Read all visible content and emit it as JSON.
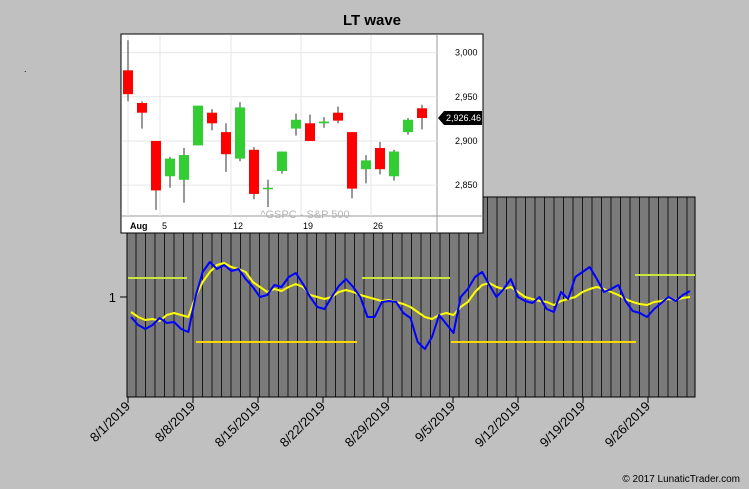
{
  "chart_data": [
    {
      "type": "line",
      "title": "LT wave",
      "y_tick_label": "1",
      "x_tick_labels": [
        "8/1/2019",
        "8/8/2019",
        "8/15/2019",
        "8/22/2019",
        "8/29/2019",
        "9/5/2019",
        "9/12/2019",
        "9/19/2019",
        "9/26/2019"
      ],
      "series": [
        {
          "color": "#0000ff",
          "values": [
            0.8,
            0.72,
            0.68,
            0.72,
            0.79,
            0.74,
            0.75,
            0.68,
            0.65,
            1.0,
            1.25,
            1.35,
            1.28,
            1.32,
            1.26,
            1.28,
            1.18,
            1.1,
            1.0,
            1.02,
            1.12,
            1.1,
            1.2,
            1.24,
            1.13,
            1.0,
            0.9,
            0.88,
            1.0,
            1.11,
            1.18,
            1.1,
            1.0,
            0.8,
            0.8,
            0.95,
            0.96,
            0.95,
            0.84,
            0.79,
            0.55,
            0.48,
            0.6,
            0.82,
            0.73,
            0.64,
            1.0,
            1.08,
            1.2,
            1.25,
            1.12,
            1.0,
            1.08,
            1.18,
            1.0,
            0.96,
            0.94,
            1.0,
            0.88,
            0.85,
            1.05,
            0.98,
            1.2,
            1.25,
            1.3,
            1.18,
            1.05,
            1.08,
            1.12,
            0.96,
            0.86,
            0.84,
            0.8,
            0.88,
            0.94,
            1.0,
            0.96,
            1.02,
            1.06
          ]
        },
        {
          "color": "#ffff00",
          "values": [
            0.85,
            0.8,
            0.77,
            0.78,
            0.76,
            0.82,
            0.84,
            0.82,
            0.8,
            1.0,
            1.15,
            1.25,
            1.32,
            1.34,
            1.3,
            1.28,
            1.25,
            1.15,
            1.1,
            1.05,
            1.08,
            1.06,
            1.1,
            1.13,
            1.1,
            1.02,
            1.0,
            0.98,
            1.0,
            1.05,
            1.07,
            1.05,
            1.02,
            1.0,
            0.98,
            0.96,
            0.97,
            0.95,
            0.93,
            0.9,
            0.85,
            0.8,
            0.78,
            0.82,
            0.84,
            0.82,
            0.9,
            0.95,
            1.05,
            1.12,
            1.14,
            1.1,
            1.08,
            1.1,
            1.05,
            1.0,
            0.98,
            0.96,
            0.95,
            0.92,
            0.96,
            0.98,
            1.0,
            1.05,
            1.08,
            1.1,
            1.08,
            1.05,
            1.02,
            0.98,
            0.95,
            0.93,
            0.92,
            0.95,
            0.96,
            0.98,
            0.97,
            0.99,
            1.0
          ]
        }
      ],
      "level_lines": [
        {
          "color": "#c8e63c",
          "value": 1.19
        },
        {
          "color": "#c8e63c",
          "value": 1.19
        },
        {
          "color": "#c8e63c",
          "value": 1.22
        },
        {
          "color": "#ffd700",
          "value": 0.55
        },
        {
          "color": "#ffd700",
          "value": 0.55
        }
      ]
    },
    {
      "type": "candlestick",
      "title": "^GSPC - S&P 500",
      "x_tick_labels": [
        "Aug",
        "5",
        "12",
        "19",
        "26"
      ],
      "y_tick_labels": [
        "3,000",
        "2,950",
        "2,900",
        "2,850"
      ],
      "last_price_label": "2,926.46",
      "up_color": "#32cd32",
      "down_color": "#ff0000",
      "candles": [
        {
          "o": 2980,
          "h": 3014,
          "l": 2945,
          "c": 2953
        },
        {
          "o": 2943,
          "h": 2945,
          "l": 2914,
          "c": 2932
        },
        {
          "o": 2900,
          "h": 2900,
          "l": 2822,
          "c": 2844
        },
        {
          "o": 2860,
          "h": 2882,
          "l": 2847,
          "c": 2880
        },
        {
          "o": 2856,
          "h": 2892,
          "l": 2830,
          "c": 2884
        },
        {
          "o": 2895,
          "h": 2940,
          "l": 2895,
          "c": 2940
        },
        {
          "o": 2932,
          "h": 2936,
          "l": 2912,
          "c": 2920
        },
        {
          "o": 2910,
          "h": 2920,
          "l": 2865,
          "c": 2885
        },
        {
          "o": 2880,
          "h": 2944,
          "l": 2877,
          "c": 2938
        },
        {
          "o": 2890,
          "h": 2893,
          "l": 2834,
          "c": 2840
        },
        {
          "o": 2847,
          "h": 2856,
          "l": 2825,
          "c": 2847
        },
        {
          "o": 2866,
          "h": 2888,
          "l": 2863,
          "c": 2888
        },
        {
          "o": 2914,
          "h": 2931,
          "l": 2906,
          "c": 2924
        },
        {
          "o": 2920,
          "h": 2930,
          "l": 2900,
          "c": 2900
        },
        {
          "o": 2920,
          "h": 2927,
          "l": 2915,
          "c": 2922
        },
        {
          "o": 2932,
          "h": 2939,
          "l": 2920,
          "c": 2923
        },
        {
          "o": 2910,
          "h": 2910,
          "l": 2835,
          "c": 2846
        },
        {
          "o": 2868,
          "h": 2884,
          "l": 2852,
          "c": 2878
        },
        {
          "o": 2892,
          "h": 2899,
          "l": 2862,
          "c": 2868
        },
        {
          "o": 2860,
          "h": 2890,
          "l": 2855,
          "c": 2888
        },
        {
          "o": 2910,
          "h": 2926,
          "l": 2907,
          "c": 2924
        },
        {
          "o": 2937,
          "h": 2941,
          "l": 2913,
          "c": 2926
        }
      ]
    }
  ],
  "copyright": "© 2017 LunaticTrader.com"
}
